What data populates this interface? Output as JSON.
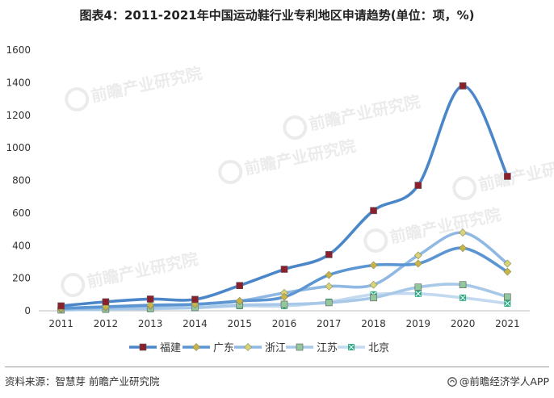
{
  "title": "图表4：2011-2021年中国运动鞋行业专利地区申请趋势(单位：项，%)",
  "source_text": "资料来源：智慧芽 前瞻产业研究院",
  "brand_text": "@前瞻经济学人APP",
  "watermark_text": "前瞻产业研究院",
  "chart_data": {
    "type": "line",
    "title": "图表4：2011-2021年中国运动鞋行业专利地区申请趋势(单位：项，%)",
    "xlabel": "",
    "ylabel": "",
    "x": [
      "2011",
      "2012",
      "2013",
      "2014",
      "2015",
      "2016",
      "2017",
      "2018",
      "2019",
      "2020",
      "2021"
    ],
    "ylim": [
      0,
      1600
    ],
    "yticks": [
      0,
      200,
      400,
      600,
      800,
      1000,
      1200,
      1400,
      1600
    ],
    "grid": false,
    "legend": "bottom",
    "smooth": true,
    "series": [
      {
        "name": "福建",
        "color": "#4a86c8",
        "marker": "square",
        "marker_color": "#8b1f2c",
        "values": [
          30,
          55,
          72,
          70,
          155,
          255,
          345,
          615,
          770,
          1380,
          825
        ]
      },
      {
        "name": "广东",
        "color": "#5b95d2",
        "marker": "diamond",
        "marker_color": "#c9b44a",
        "values": [
          15,
          25,
          35,
          40,
          60,
          85,
          220,
          280,
          290,
          385,
          240
        ]
      },
      {
        "name": "浙江",
        "color": "#8fb8e2",
        "marker": "diamond",
        "marker_color": "#d8d27a",
        "values": [
          10,
          20,
          30,
          40,
          60,
          110,
          150,
          160,
          340,
          480,
          290
        ]
      },
      {
        "name": "江苏",
        "color": "#a8c8e8",
        "marker": "square",
        "marker_color": "#92c89c",
        "values": [
          5,
          10,
          15,
          20,
          35,
          40,
          50,
          80,
          145,
          160,
          85
        ]
      },
      {
        "name": "北京",
        "color": "#c3d9ef",
        "marker": "x-square",
        "marker_color": "#2fa882",
        "values": [
          5,
          8,
          12,
          18,
          30,
          30,
          55,
          100,
          105,
          80,
          45
        ]
      }
    ]
  }
}
